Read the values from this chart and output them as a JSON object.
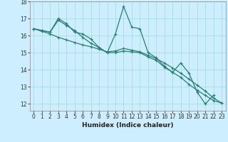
{
  "xlabel": "Humidex (Indice chaleur)",
  "ylabel": "",
  "background_color": "#cceeff",
  "grid_color": "#aadddd",
  "line_color": "#2e7d72",
  "xlim": [
    -0.5,
    23.5
  ],
  "ylim": [
    11.6,
    18.0
  ],
  "yticks": [
    12,
    13,
    14,
    15,
    16,
    17,
    18
  ],
  "xticks": [
    0,
    1,
    2,
    3,
    4,
    5,
    6,
    7,
    8,
    9,
    10,
    11,
    12,
    13,
    14,
    15,
    16,
    17,
    18,
    19,
    20,
    21,
    22,
    23
  ],
  "series1_x": [
    0,
    1,
    2,
    3,
    4,
    5,
    6,
    7,
    8,
    9,
    10,
    11,
    12,
    13,
    14,
    15,
    16,
    17,
    18,
    19,
    20,
    21,
    22
  ],
  "series1_y": [
    16.4,
    16.3,
    16.2,
    17.0,
    16.7,
    16.2,
    16.1,
    15.8,
    15.3,
    15.0,
    16.1,
    17.7,
    16.5,
    16.4,
    15.0,
    14.7,
    14.2,
    13.85,
    14.4,
    13.8,
    12.7,
    12.0,
    12.5
  ],
  "series2_x": [
    0,
    1,
    2,
    3,
    4,
    5,
    6,
    7,
    8,
    9,
    10,
    11,
    12,
    13,
    14,
    15,
    16,
    17,
    18,
    19,
    20,
    21,
    22,
    23
  ],
  "series2_y": [
    16.4,
    16.25,
    16.1,
    15.9,
    15.75,
    15.6,
    15.45,
    15.35,
    15.2,
    15.05,
    15.1,
    15.25,
    15.15,
    15.05,
    14.85,
    14.65,
    14.4,
    14.1,
    13.8,
    13.45,
    13.1,
    12.75,
    12.35,
    12.05
  ],
  "series3_x": [
    0,
    1,
    2,
    3,
    4,
    5,
    6,
    7,
    8,
    9,
    10,
    11,
    12,
    13,
    14,
    15,
    16,
    17,
    18,
    19,
    20,
    21,
    22,
    23
  ],
  "series3_y": [
    16.4,
    16.3,
    16.2,
    16.9,
    16.6,
    16.3,
    15.9,
    15.55,
    15.3,
    15.0,
    15.0,
    15.1,
    15.05,
    15.0,
    14.75,
    14.55,
    14.15,
    13.85,
    13.55,
    13.15,
    12.8,
    12.5,
    12.2,
    12.05
  ]
}
